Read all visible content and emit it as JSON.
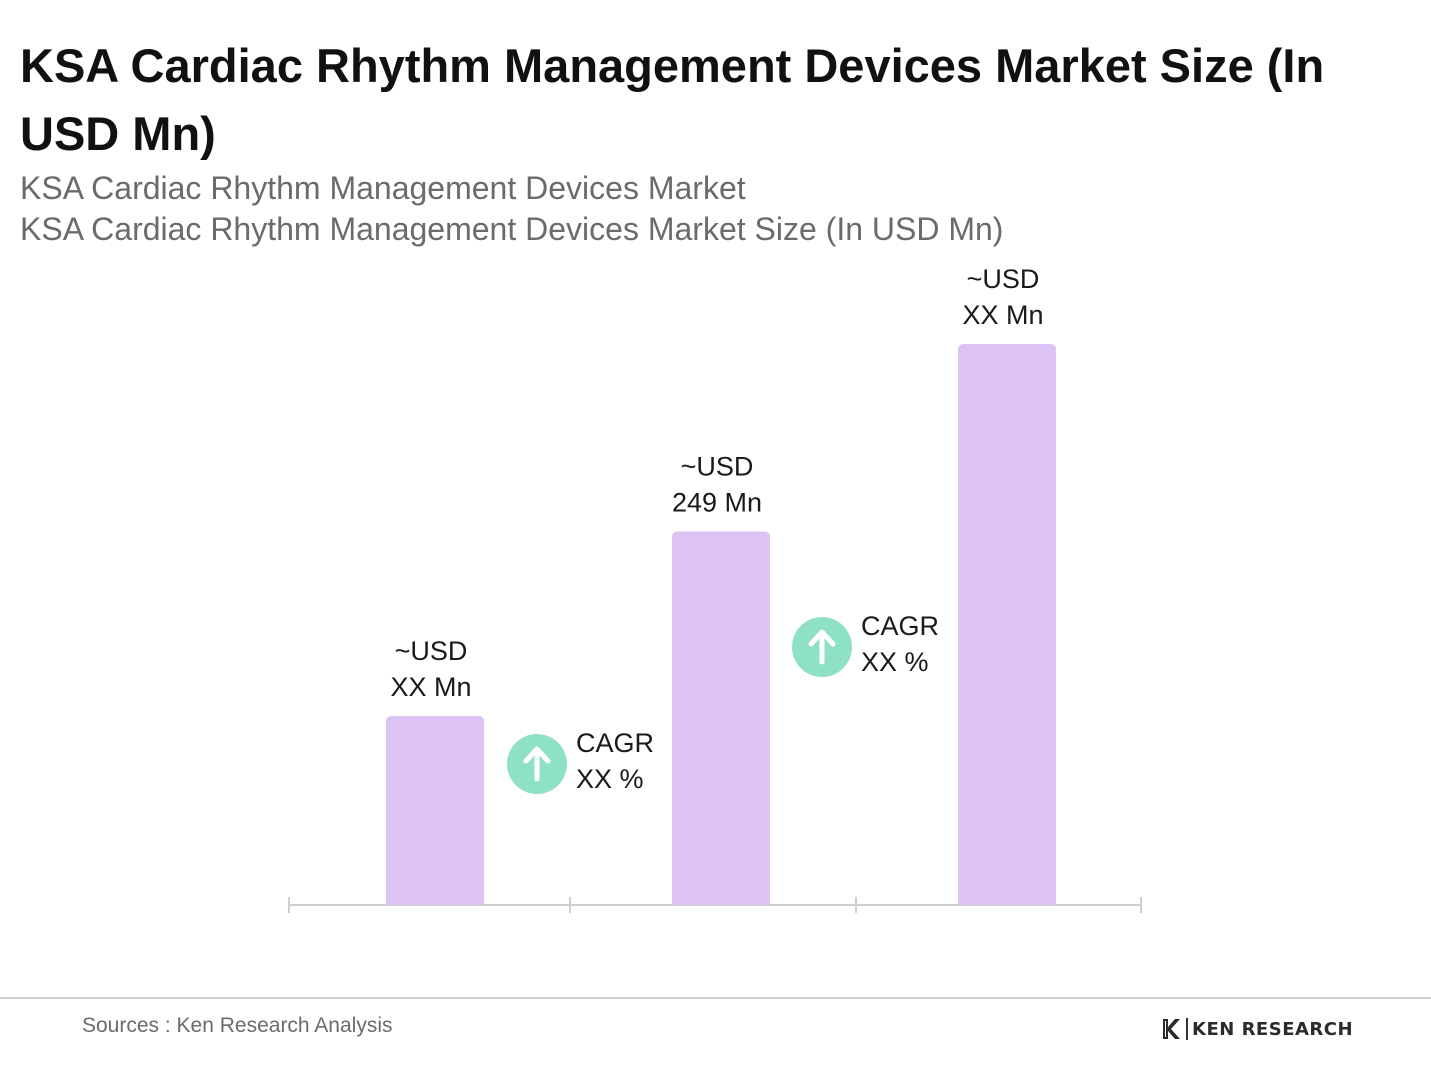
{
  "header": {
    "title": "KSA Cardiac Rhythm Management Devices Market Size (In USD Mn)",
    "subtitle_1": "KSA Cardiac Rhythm Management Devices Market",
    "subtitle_2": "KSA Cardiac Rhythm Management Devices Market Size (In USD Mn)"
  },
  "chart_data": {
    "type": "bar",
    "title": "KSA Cardiac Rhythm Management Devices Market Size (In USD Mn)",
    "xlabel": "",
    "ylabel": "",
    "categories": [
      "",
      "",
      ""
    ],
    "values": [
      126,
      249,
      374
    ],
    "ylim": [
      0,
      420
    ],
    "grid": false,
    "legend": "none",
    "bar_color": "#dcc2f5",
    "axis_color": "#cfcfcf",
    "data_labels": [
      [
        "~USD",
        "XX Mn"
      ],
      [
        "~USD",
        "249 Mn"
      ],
      [
        "~USD",
        "XX Mn"
      ]
    ],
    "annotations": [
      {
        "text": [
          "CAGR",
          "XX %"
        ],
        "between": [
          0,
          1
        ],
        "icon": "arrow-up-icon",
        "color": "#8ee0c6"
      },
      {
        "text": [
          "CAGR",
          "XX %"
        ],
        "between": [
          1,
          2
        ],
        "icon": "arrow-up-icon",
        "color": "#8ee0c6"
      }
    ]
  },
  "footer": {
    "source": "Sources : Ken Research Analysis",
    "logo_text": "KEN RESEARCH",
    "logo_icon": "ken-research-logo-icon"
  }
}
